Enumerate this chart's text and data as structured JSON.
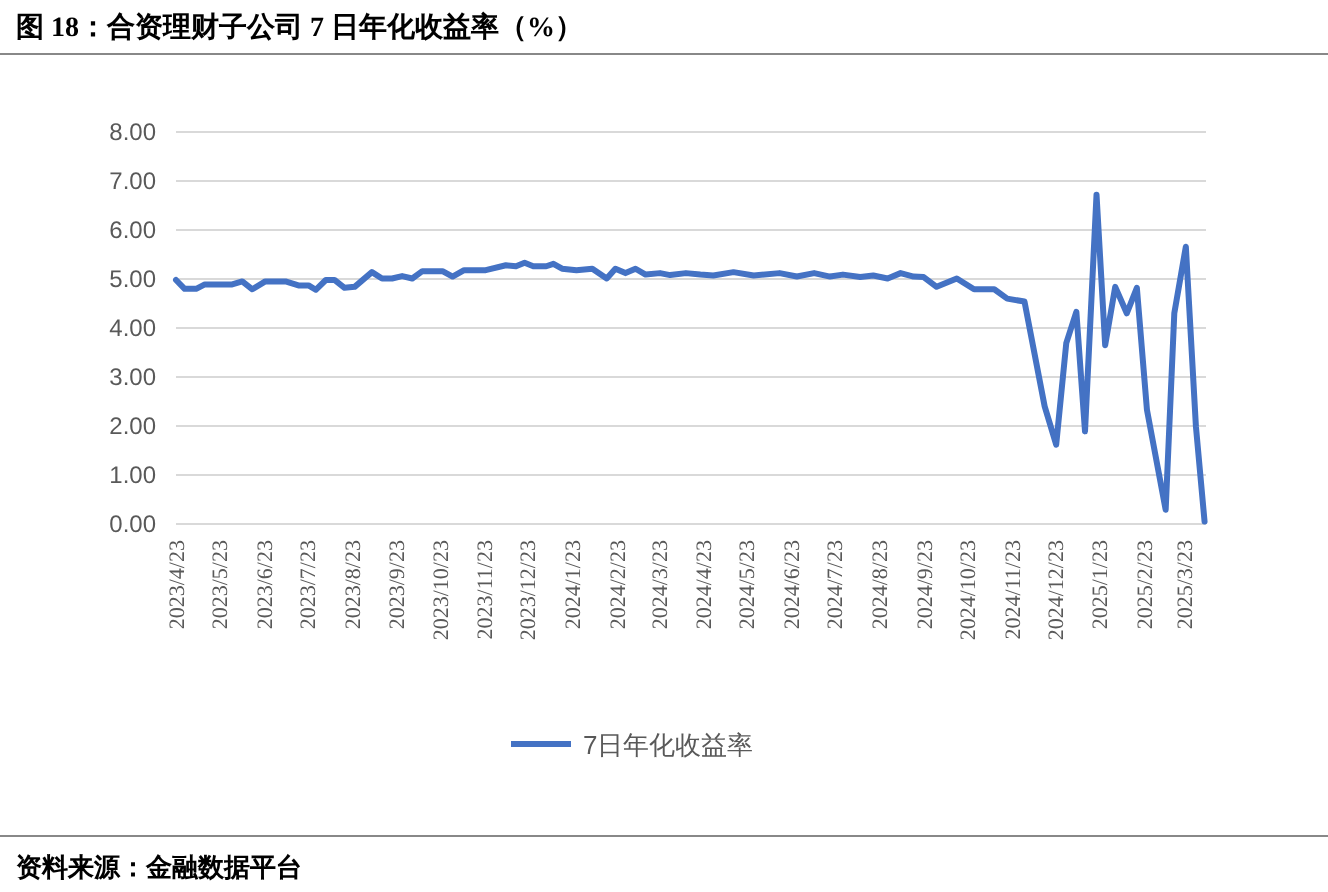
{
  "chart_data": {
    "type": "line",
    "title": "图 18：合资理财子公司 7 日年化收益率（%）",
    "annotations": [
      "资料来源：金融数据平台"
    ],
    "series": [
      {
        "name": "7日年化收益率",
        "color": "#4472c4",
        "x": [
          "2023-04-23",
          "2023-04-29",
          "2023-05-07",
          "2023-05-13",
          "2023-06-01",
          "2023-06-08",
          "2023-06-15",
          "2023-06-24",
          "2023-07-08",
          "2023-07-17",
          "2023-07-24",
          "2023-07-29",
          "2023-08-05",
          "2023-08-11",
          "2023-08-18",
          "2023-08-25",
          "2023-09-06",
          "2023-09-13",
          "2023-09-20",
          "2023-09-27",
          "2023-10-04",
          "2023-10-11",
          "2023-10-25",
          "2023-11-01",
          "2023-11-09",
          "2023-11-24",
          "2023-12-08",
          "2023-12-15",
          "2023-12-21",
          "2023-12-27",
          "2024-01-05",
          "2024-01-10",
          "2024-01-16",
          "2024-01-26",
          "2024-02-06",
          "2024-02-16",
          "2024-02-22",
          "2024-02-29",
          "2024-03-07",
          "2024-03-14",
          "2024-03-24",
          "2024-03-31",
          "2024-04-11",
          "2024-04-21",
          "2024-04-30",
          "2024-05-14",
          "2024-05-28",
          "2024-06-15",
          "2024-06-27",
          "2024-07-09",
          "2024-07-20",
          "2024-07-29",
          "2024-08-10",
          "2024-08-19",
          "2024-08-29",
          "2024-09-07",
          "2024-09-16",
          "2024-09-23",
          "2024-10-02",
          "2024-10-16",
          "2024-10-28",
          "2024-11-11",
          "2024-11-20",
          "2024-12-02",
          "2024-12-16",
          "2024-12-24",
          "2024-12-31",
          "2025-01-07",
          "2025-01-13",
          "2025-01-21",
          "2025-01-27",
          "2025-02-03",
          "2025-02-11",
          "2025-02-18",
          "2025-02-25",
          "2025-03-10",
          "2025-03-16",
          "2025-03-24",
          "2025-03-31",
          "2025-04-06"
        ],
        "values": [
          4.98,
          4.8,
          4.8,
          4.89,
          4.89,
          4.95,
          4.79,
          4.95,
          4.95,
          4.87,
          4.87,
          4.78,
          4.98,
          4.98,
          4.82,
          4.84,
          5.14,
          5.01,
          5.01,
          5.06,
          5.01,
          5.16,
          5.16,
          5.05,
          5.18,
          5.18,
          5.28,
          5.26,
          5.33,
          5.26,
          5.26,
          5.31,
          5.21,
          5.18,
          5.21,
          5.01,
          5.21,
          5.12,
          5.21,
          5.09,
          5.12,
          5.08,
          5.12,
          5.09,
          5.07,
          5.14,
          5.07,
          5.12,
          5.05,
          5.12,
          5.05,
          5.09,
          5.04,
          5.07,
          5.01,
          5.12,
          5.05,
          5.04,
          4.84,
          5.01,
          4.79,
          4.79,
          4.6,
          4.54,
          2.4,
          1.62,
          3.69,
          4.33,
          1.89,
          6.72,
          3.65,
          4.84,
          4.3,
          4.82,
          2.33,
          0.29,
          4.3,
          5.66,
          1.99,
          0.05
        ]
      }
    ],
    "xlim": [
      "2023-04-23",
      "2025-04-07"
    ],
    "xticks": [
      {
        "value": "2023-04-23",
        "label": "2023/4/23"
      },
      {
        "value": "2023-05-23",
        "label": "2023/5/23"
      },
      {
        "value": "2023-06-23",
        "label": "2023/6/23"
      },
      {
        "value": "2023-07-23",
        "label": "2023/7/23"
      },
      {
        "value": "2023-08-23",
        "label": "2023/8/23"
      },
      {
        "value": "2023-09-23",
        "label": "2023/9/23"
      },
      {
        "value": "2023-10-23",
        "label": "2023/10/23"
      },
      {
        "value": "2023-11-23",
        "label": "2023/11/23"
      },
      {
        "value": "2023-12-23",
        "label": "2023/12/23"
      },
      {
        "value": "2024-01-23",
        "label": "2024/1/23"
      },
      {
        "value": "2024-02-23",
        "label": "2024/2/23"
      },
      {
        "value": "2024-03-23",
        "label": "2024/3/23"
      },
      {
        "value": "2024-04-23",
        "label": "2024/4/23"
      },
      {
        "value": "2024-05-23",
        "label": "2024/5/23"
      },
      {
        "value": "2024-06-23",
        "label": "2024/6/23"
      },
      {
        "value": "2024-07-23",
        "label": "2024/7/23"
      },
      {
        "value": "2024-08-23",
        "label": "2024/8/23"
      },
      {
        "value": "2024-09-23",
        "label": "2024/9/23"
      },
      {
        "value": "2024-10-23",
        "label": "2024/10/23"
      },
      {
        "value": "2024-11-23",
        "label": "2024/11/23"
      },
      {
        "value": "2024-12-23",
        "label": "2024/12/23"
      },
      {
        "value": "2025-01-23",
        "label": "2025/1/23"
      },
      {
        "value": "2025-02-23",
        "label": "2025/2/23"
      },
      {
        "value": "2025-03-23",
        "label": "2025/3/23"
      }
    ],
    "ylim": [
      0,
      8
    ],
    "yticks": [
      {
        "value": 0,
        "label": "0.00"
      },
      {
        "value": 1,
        "label": "1.00"
      },
      {
        "value": 2,
        "label": "2.00"
      },
      {
        "value": 3,
        "label": "3.00"
      },
      {
        "value": 4,
        "label": "4.00"
      },
      {
        "value": 5,
        "label": "5.00"
      },
      {
        "value": 6,
        "label": "6.00"
      },
      {
        "value": 7,
        "label": "7.00"
      },
      {
        "value": 8,
        "label": "8.00"
      }
    ],
    "grid": "y",
    "legend": "bottom",
    "marker": "none",
    "line_style": "solid"
  }
}
